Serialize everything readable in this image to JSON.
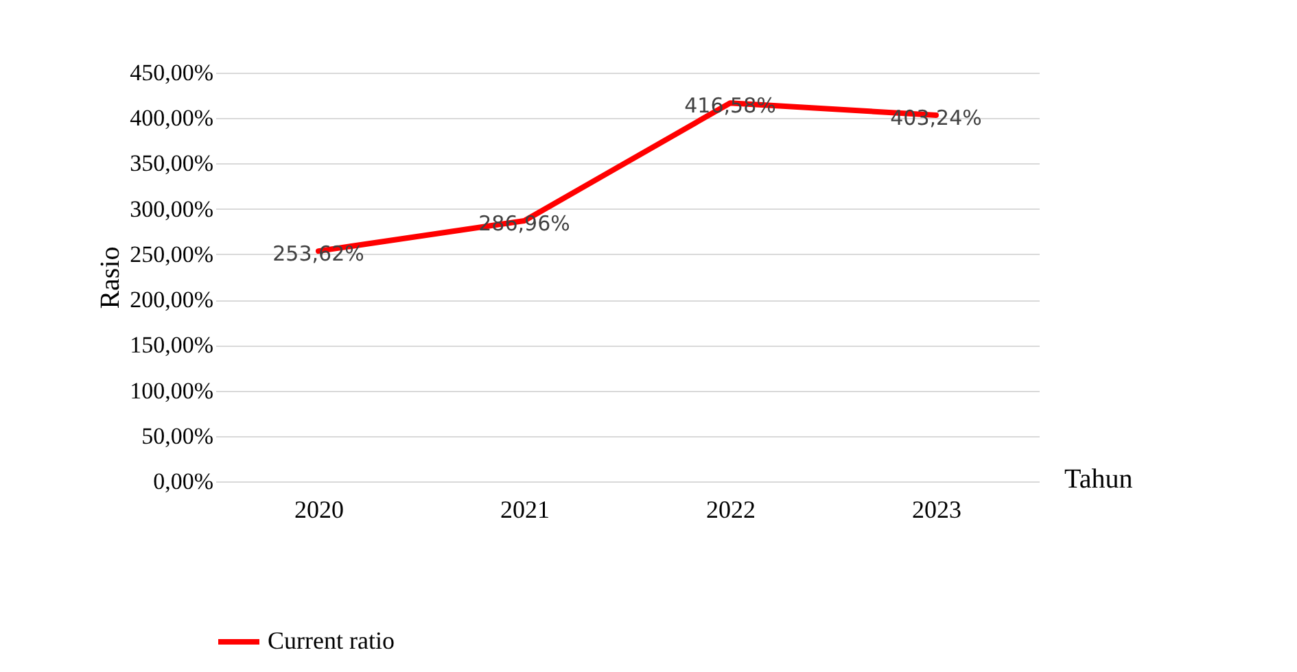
{
  "chart_data": {
    "type": "line",
    "xlabel": "Tahun",
    "ylabel": "Rasio",
    "categories": [
      "2020",
      "2021",
      "2022",
      "2023"
    ],
    "series": [
      {
        "name": "Current ratio",
        "color": "#ff0000",
        "values": [
          253.62,
          286.96,
          416.58,
          403.24
        ],
        "value_labels": [
          "253,62%",
          "286,96%",
          "416,58%",
          "403,24%"
        ]
      }
    ],
    "ylim": [
      0,
      450
    ],
    "yticks": [
      {
        "value": 0,
        "label": "0,00%"
      },
      {
        "value": 50,
        "label": "50,00%"
      },
      {
        "value": 100,
        "label": "100,00%"
      },
      {
        "value": 150,
        "label": "150,00%"
      },
      {
        "value": 200,
        "label": "200,00%"
      },
      {
        "value": 250,
        "label": "250,00%"
      },
      {
        "value": 300,
        "label": "300,00%"
      },
      {
        "value": 350,
        "label": "350,00%"
      },
      {
        "value": 400,
        "label": "400,00%"
      },
      {
        "value": 450,
        "label": "450,00%"
      }
    ],
    "grid": "y",
    "legend": "bottom"
  }
}
